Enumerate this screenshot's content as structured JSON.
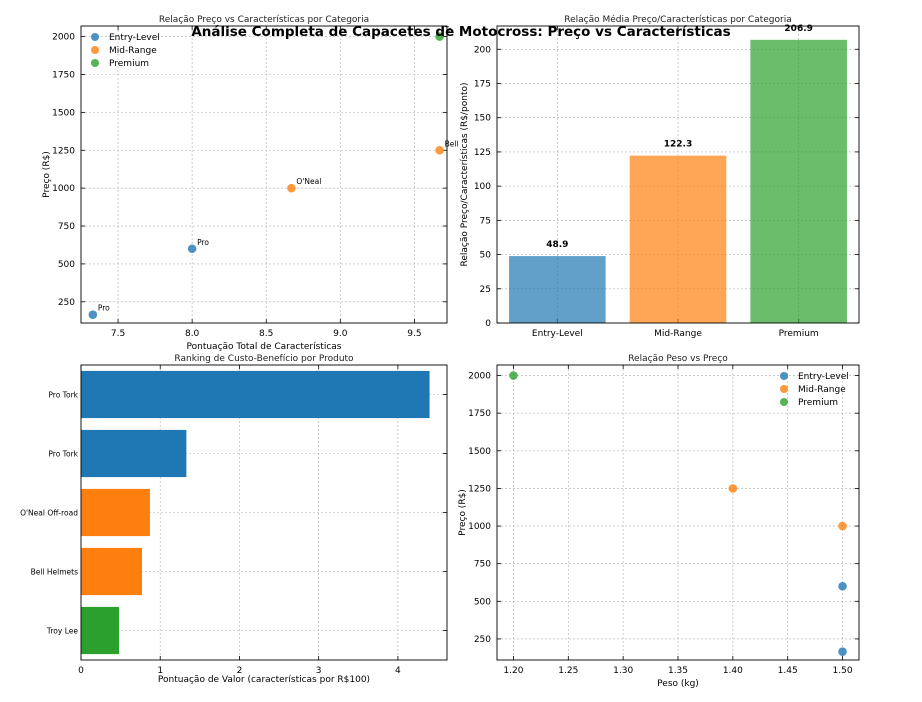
{
  "suptitle": "Análise Completa de Capacetes de Motocross: Preço vs Características",
  "colors": {
    "entry": "#1f77b4",
    "mid": "#ff7f0e",
    "premium": "#2ca02c"
  },
  "chart_data": [
    {
      "type": "scatter",
      "title": "Relação Preço vs Características por Categoria",
      "xlabel": "Pontuação Total de Características",
      "ylabel": "Preço (R$)",
      "xlim": [
        7.25,
        9.72
      ],
      "ylim": [
        110,
        2070
      ],
      "xticks": [
        7.5,
        8.0,
        8.5,
        9.0,
        9.5
      ],
      "xtick_labels": [
        "7.5",
        "8.0",
        "8.5",
        "9.0",
        "9.5"
      ],
      "yticks": [
        250,
        500,
        750,
        1000,
        1250,
        1500,
        1750,
        2000
      ],
      "legend": [
        "Entry-Level",
        "Mid-Range",
        "Premium"
      ],
      "legend_position": "top-left",
      "points": [
        {
          "x": 7.33,
          "y": 165,
          "category": "Entry-Level",
          "label": "Pro",
          "color": "#1f77b4"
        },
        {
          "x": 8.0,
          "y": 600,
          "category": "Entry-Level",
          "label": "Pro",
          "color": "#1f77b4"
        },
        {
          "x": 8.67,
          "y": 1000,
          "category": "Mid-Range",
          "label": "O'Neal",
          "color": "#ff7f0e"
        },
        {
          "x": 9.67,
          "y": 1250,
          "category": "Mid-Range",
          "label": "Bell",
          "color": "#ff7f0e"
        },
        {
          "x": 9.67,
          "y": 2000,
          "category": "Premium",
          "label": "Tr",
          "color": "#2ca02c"
        }
      ]
    },
    {
      "type": "bar",
      "title": "Relação Média Preço/Características por Categoria",
      "xlabel": "",
      "ylabel": "Relação Preço/Características (R$/ponto)",
      "categories": [
        "Entry-Level",
        "Mid-Range",
        "Premium"
      ],
      "values": [
        48.9,
        122.3,
        206.9
      ],
      "value_labels": [
        "48.9",
        "122.3",
        "206.9"
      ],
      "bar_colors": [
        "#1f77b4",
        "#ff7f0e",
        "#2ca02c"
      ],
      "ylim": [
        0,
        217
      ],
      "yticks": [
        0,
        25,
        50,
        75,
        100,
        125,
        150,
        175,
        200
      ]
    },
    {
      "type": "bar",
      "orientation": "horizontal",
      "title": "Ranking de Custo-Benefício por Produto",
      "xlabel": "Pontuação de Valor (características por R$100)",
      "ylabel": "",
      "categories": [
        "Pro Tork",
        "Pro Tork",
        "O'Neal Off-road",
        "Bell Helmets",
        "Troy Lee"
      ],
      "values": [
        4.4,
        1.33,
        0.87,
        0.77,
        0.48
      ],
      "bar_colors": [
        "#1f77b4",
        "#1f77b4",
        "#ff7f0e",
        "#ff7f0e",
        "#2ca02c"
      ],
      "xlim": [
        0,
        4.62
      ],
      "xticks": [
        0,
        1,
        2,
        3,
        4
      ]
    },
    {
      "type": "scatter",
      "title": "Relação Peso vs Preço",
      "xlabel": "Peso (kg)",
      "ylabel": "Preço (R$)",
      "xlim": [
        1.185,
        1.515
      ],
      "ylim": [
        110,
        2070
      ],
      "xticks": [
        1.2,
        1.25,
        1.3,
        1.35,
        1.4,
        1.45,
        1.5
      ],
      "xtick_labels": [
        "1.20",
        "1.25",
        "1.30",
        "1.35",
        "1.40",
        "1.45",
        "1.50"
      ],
      "yticks": [
        250,
        500,
        750,
        1000,
        1250,
        1500,
        1750,
        2000
      ],
      "legend": [
        "Entry-Level",
        "Mid-Range",
        "Premium"
      ],
      "legend_position": "top-right",
      "points": [
        {
          "x": 1.5,
          "y": 165,
          "category": "Entry-Level",
          "color": "#1f77b4"
        },
        {
          "x": 1.5,
          "y": 600,
          "category": "Entry-Level",
          "color": "#1f77b4"
        },
        {
          "x": 1.5,
          "y": 1000,
          "category": "Mid-Range",
          "color": "#ff7f0e"
        },
        {
          "x": 1.4,
          "y": 1250,
          "category": "Mid-Range",
          "color": "#ff7f0e"
        },
        {
          "x": 1.2,
          "y": 2000,
          "category": "Premium",
          "color": "#2ca02c"
        }
      ]
    }
  ]
}
